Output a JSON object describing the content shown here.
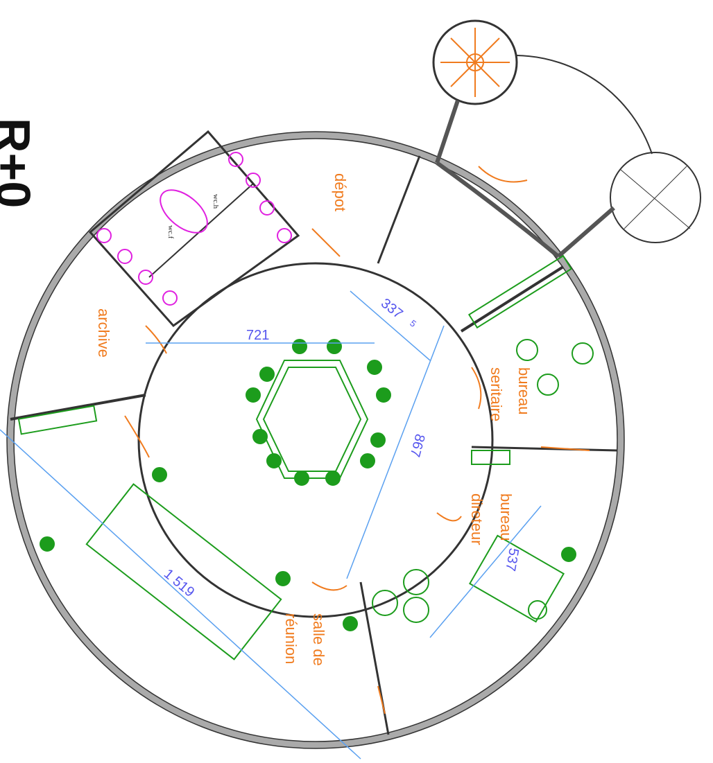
{
  "plan_label": "R+0",
  "rooms": [
    {
      "lines": [
        "dépot"
      ]
    },
    {
      "lines": [
        "archive"
      ]
    },
    {
      "lines": [
        "wc.h"
      ]
    },
    {
      "lines": [
        "wc.f"
      ]
    },
    {
      "lines": [
        "bureau",
        "seritaire"
      ]
    },
    {
      "lines": [
        "bureau",
        "direteur"
      ]
    },
    {
      "lines": [
        "salle de",
        "réunion"
      ]
    }
  ],
  "dimensions": [
    "721",
    "337",
    "5",
    "867",
    "1 519",
    "537"
  ]
}
